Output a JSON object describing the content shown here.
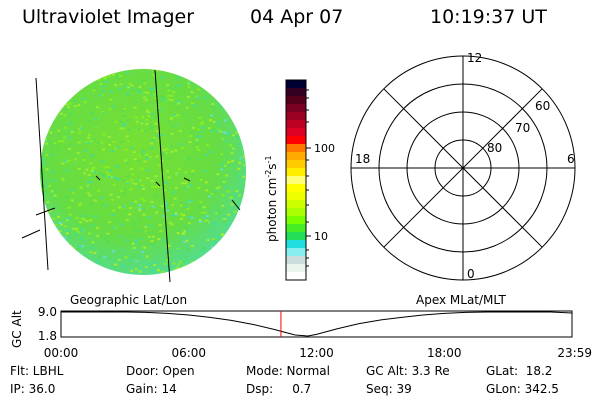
{
  "header": {
    "instrument": "Ultraviolet Imager",
    "date": "04 Apr 07",
    "time": "10:19:37 UT"
  },
  "colorbar": {
    "label": "photon cm",
    "label_exp1": "-2",
    "label_mid": "s",
    "label_exp2": "-1",
    "ticks": [
      "100",
      "10"
    ],
    "scale": "log",
    "colors": [
      "#000033",
      "#330022",
      "#55001a",
      "#7a0022",
      "#990022",
      "#bb0022",
      "#dd0022",
      "#ff0000",
      "#ff7700",
      "#ffaa00",
      "#ffcc00",
      "#ffee00",
      "#ffff77",
      "#ffff00",
      "#eeff00",
      "#ccff00",
      "#aaff00",
      "#77ff00",
      "#44ee22",
      "#22dd55",
      "#22dddd",
      "#88eeee",
      "#ccdddd",
      "#e8f4ec",
      "#ffffff"
    ]
  },
  "polar": {
    "mlt_labels": [
      "12",
      "18",
      "6",
      "0"
    ],
    "lat_labels": [
      "60",
      "70",
      "80"
    ]
  },
  "plot": {
    "left_label": "Geographic Lat/Lon",
    "right_label": "Apex MLat/MLT",
    "ylabel": "GC Alt",
    "current_time_color": "#ff0000",
    "disk_color": "#66dd33"
  },
  "chart_data": {
    "type": "line",
    "ylabel": "GC Alt",
    "yticks": [
      "9.0",
      "1.8"
    ],
    "ylim": [
      1.8,
      9.0
    ],
    "xticks": [
      "00:00",
      "06:00",
      "12:00",
      "18:00",
      "23:59"
    ],
    "xlim_hours": [
      0,
      24
    ],
    "current_time_hours": 10.33,
    "x": [
      0,
      1,
      2,
      3,
      4,
      5,
      6,
      7,
      8,
      9,
      10,
      11,
      11.6,
      12,
      13,
      14,
      15,
      16,
      17,
      18,
      19,
      20,
      21,
      22,
      23,
      24
    ],
    "values": [
      9.0,
      9.0,
      9.0,
      9.0,
      8.9,
      8.6,
      8.1,
      7.4,
      6.5,
      5.3,
      3.8,
      2.1,
      1.8,
      2.3,
      4.0,
      5.5,
      6.6,
      7.4,
      8.1,
      8.6,
      8.9,
      9.0,
      9.0,
      9.0,
      9.0,
      8.7
    ]
  },
  "status": {
    "col1": [
      "Flt: LBHL",
      "IP: 36.0"
    ],
    "col2": [
      "Door: Open",
      "Gain: 14"
    ],
    "col3": [
      "Mode: Normal",
      "Dsp:     0.7"
    ],
    "col4": [
      "GC Alt: 3.3 Re",
      "Seq: 39"
    ],
    "col5": [
      "GLat:  18.2",
      "GLon: 342.5"
    ]
  }
}
